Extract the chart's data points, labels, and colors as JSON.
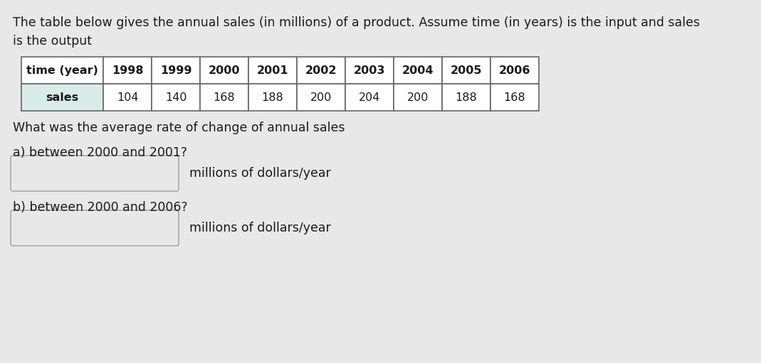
{
  "title_text": "The table below gives the annual sales (in millions) of a product. Assume time (in years) is the input and sales\nis the output",
  "table_headers": [
    "time (year)",
    "1998",
    "1999",
    "2000",
    "2001",
    "2002",
    "2003",
    "2004",
    "2005",
    "2006"
  ],
  "table_row_label": "sales",
  "table_values": [
    104,
    140,
    168,
    188,
    200,
    204,
    200,
    188,
    168
  ],
  "question_text": "What was the average rate of change of annual sales",
  "part_a_label": "a) between 2000 and 2001?",
  "part_a_unit": "millions of dollars/year",
  "part_b_label": "b) between 2000 and 2006?",
  "part_b_unit": "millions of dollars/year",
  "bg_color": "#e8e8e8",
  "table_bg": "#ffffff",
  "sales_cell_bg": "#d8ede8",
  "input_box_color": "#e8e8e8",
  "input_box_border": "#aaaaaa",
  "font_color": "#1a1a1a",
  "font_size_title": 12.5,
  "font_size_table": 11.5,
  "font_size_text": 12.5
}
